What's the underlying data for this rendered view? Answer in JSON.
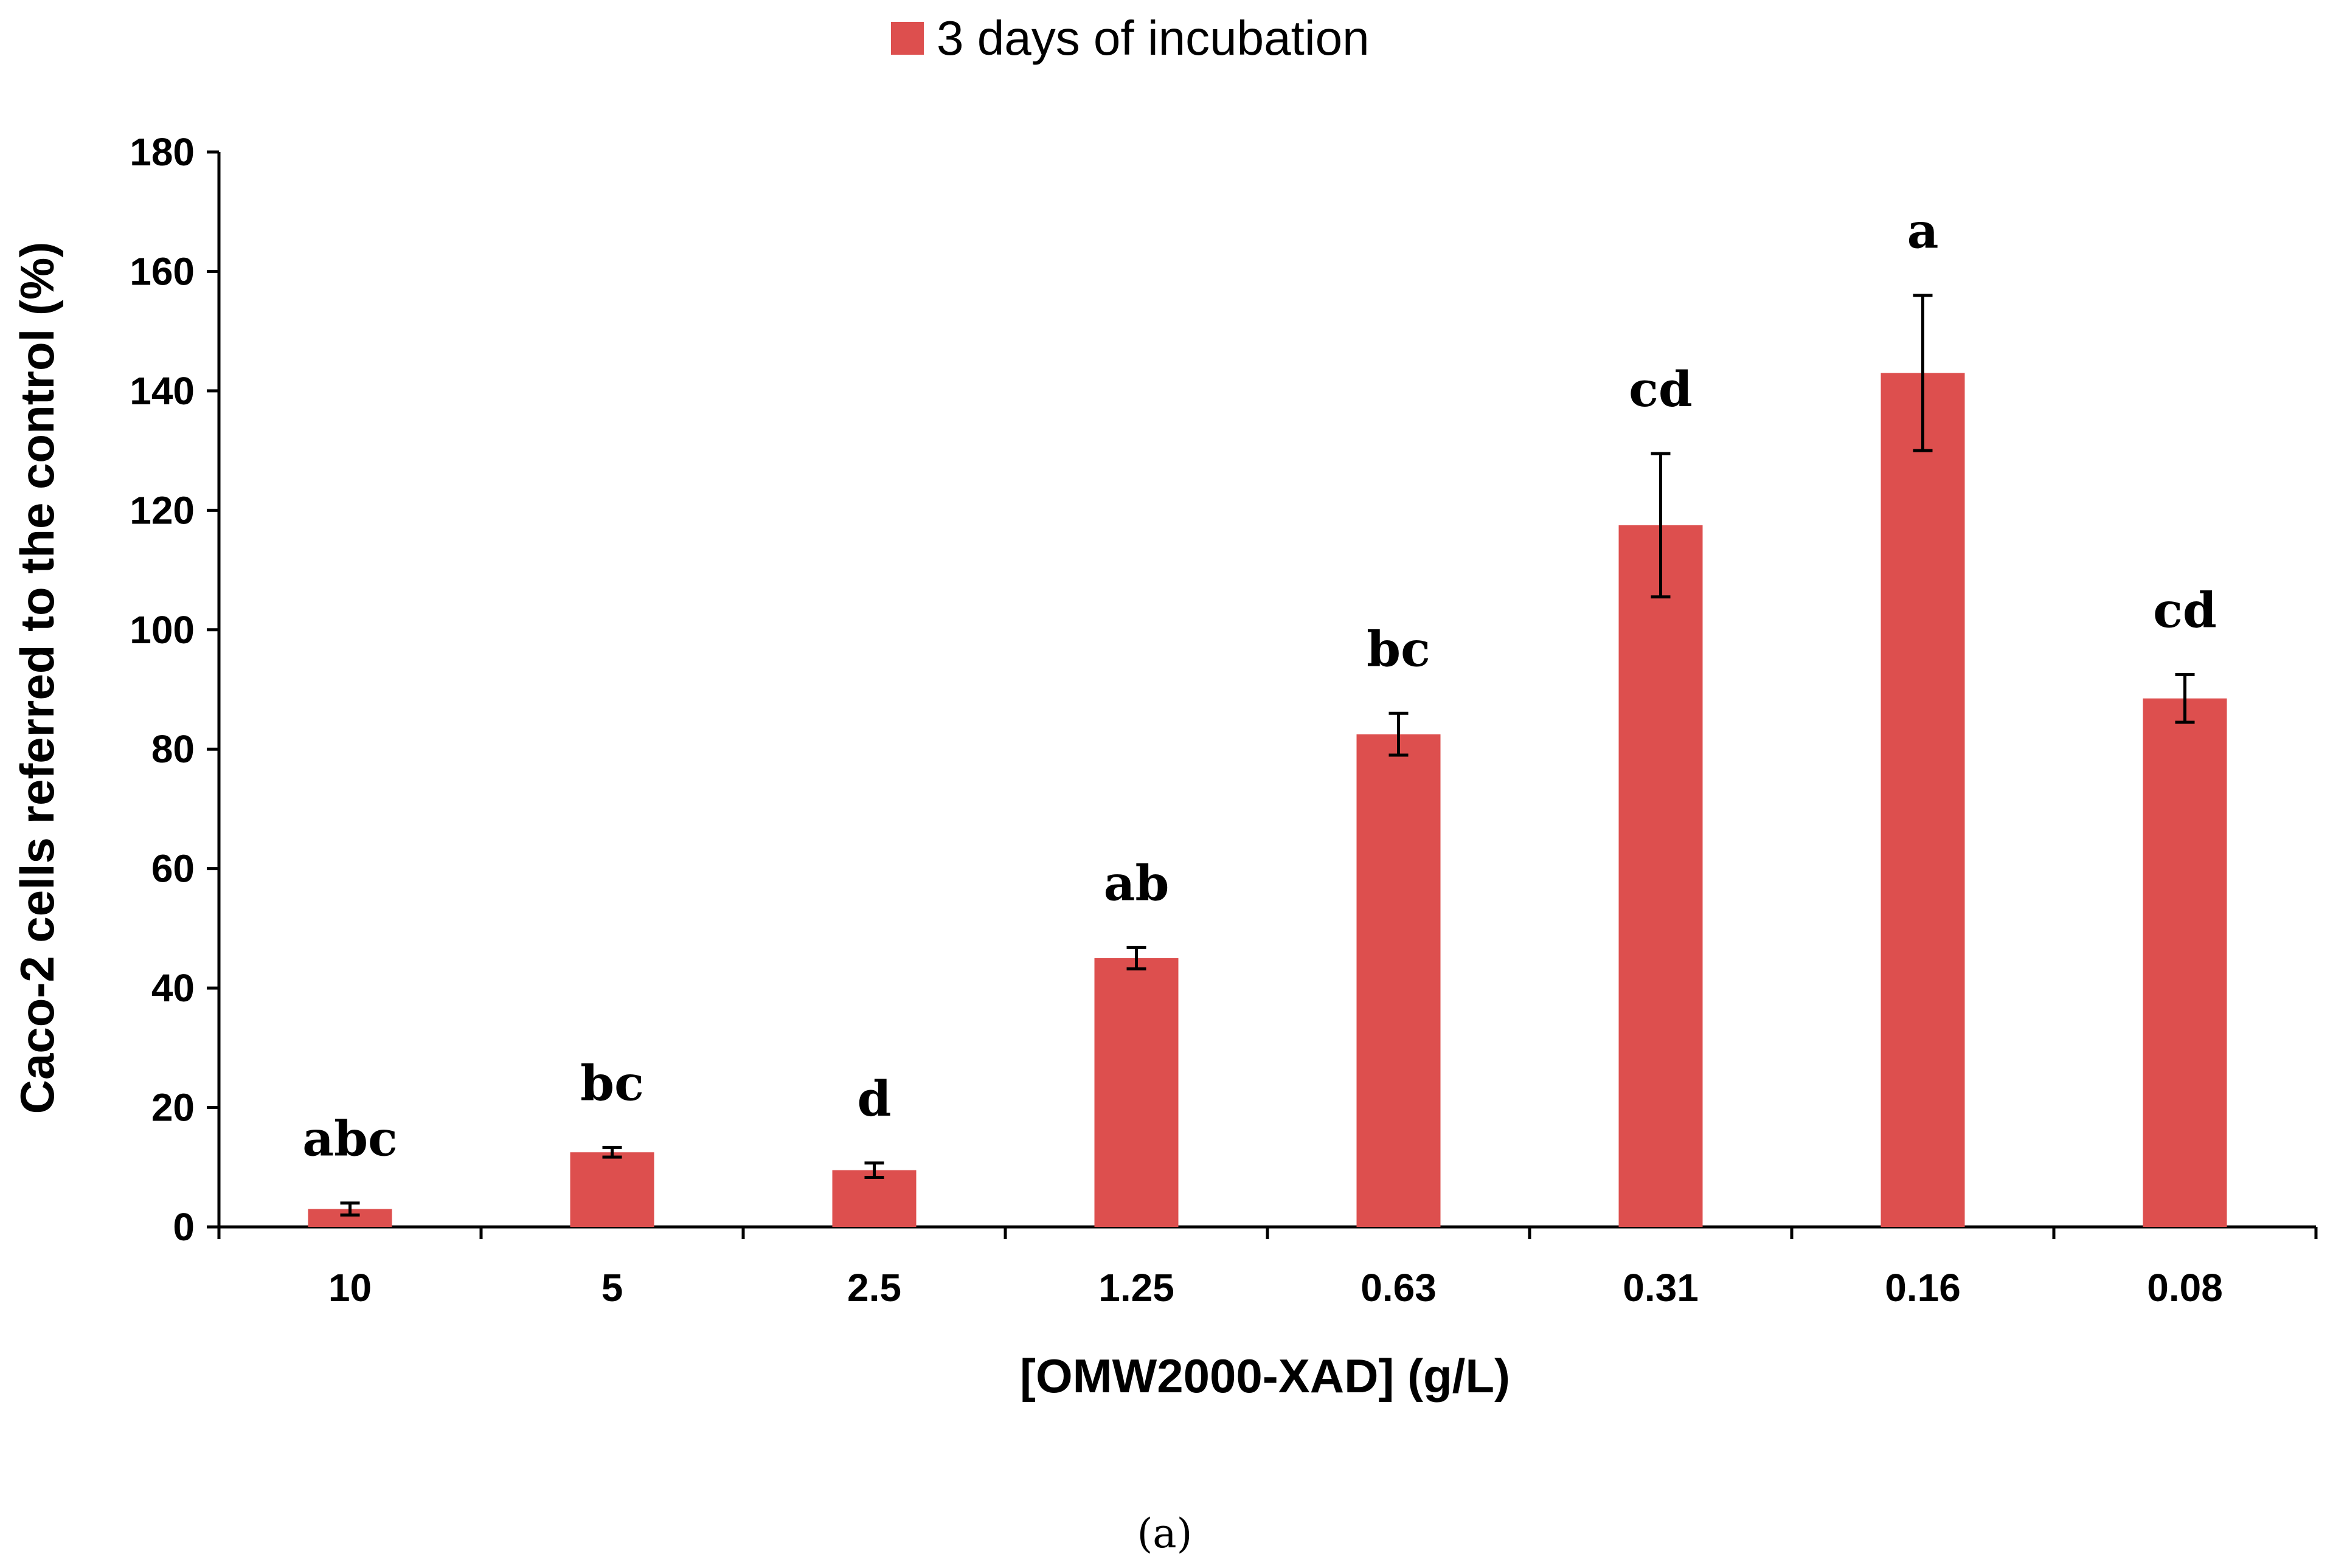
{
  "chart_data": {
    "type": "bar",
    "categories": [
      "10",
      "5",
      "2.5",
      "1.25",
      "0.63",
      "0.31",
      "0.16",
      "0.08"
    ],
    "series": [
      {
        "name": "3 days of incubation",
        "color": "#dd4f4e",
        "values": [
          3,
          12.5,
          9.5,
          45,
          82.5,
          117.5,
          143,
          88.5
        ],
        "errors": [
          1,
          0.8,
          1.2,
          1.8,
          3.5,
          12,
          13,
          4
        ],
        "significance": [
          "abc",
          "bc",
          "d",
          "ab",
          "bc",
          "cd",
          "a",
          "cd"
        ]
      }
    ],
    "title": "",
    "xlabel": "[OMW2000-XAD] (g/L)",
    "ylabel": "Caco-2 cells referred to the control (%)",
    "ylim": [
      0,
      180
    ],
    "yticks": [
      0,
      20,
      40,
      60,
      80,
      100,
      120,
      140,
      160,
      180
    ],
    "grid": false,
    "legend_position": "top-center"
  },
  "caption": "(a)"
}
